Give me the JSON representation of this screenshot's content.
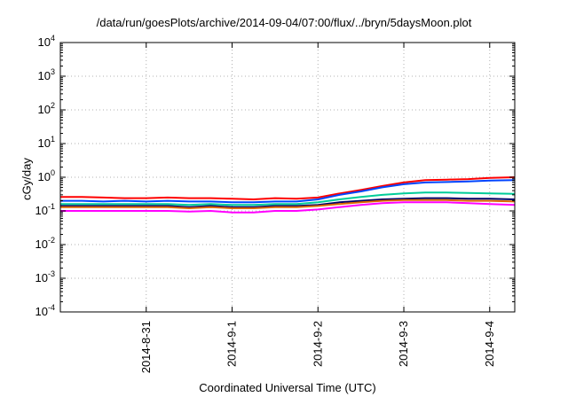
{
  "chart_data": {
    "type": "line",
    "title": "/data/run/goesPlots/archive/2014-09-04/07:00/flux/../bryn/5daysMoon.plot",
    "xlabel": "Coordinated Universal Time (UTC)",
    "ylabel": "cGy/day",
    "yscale": "log",
    "ylim": [
      0.0001,
      10000
    ],
    "xlim": [
      "2014-08-30T00:00",
      "2014-09-04T07:00"
    ],
    "x_ticks": [
      "2014-8-31",
      "2014-9-1",
      "2014-9-2",
      "2014-9-3",
      "2014-9-4"
    ],
    "y_ticks": [
      {
        "value": 0.0001,
        "base": "10",
        "exp": "-4"
      },
      {
        "value": 0.001,
        "base": "10",
        "exp": "-3"
      },
      {
        "value": 0.01,
        "base": "10",
        "exp": "-2"
      },
      {
        "value": 0.1,
        "base": "10",
        "exp": "-1"
      },
      {
        "value": 1,
        "base": "10",
        "exp": "0"
      },
      {
        "value": 10,
        "base": "10",
        "exp": "1"
      },
      {
        "value": 100,
        "base": "10",
        "exp": "2"
      },
      {
        "value": 1000,
        "base": "10",
        "exp": "3"
      },
      {
        "value": 10000,
        "base": "10",
        "exp": "4"
      }
    ],
    "grid": true,
    "x": [
      "2014-08-30T00:00",
      "2014-08-30T06:00",
      "2014-08-30T12:00",
      "2014-08-30T18:00",
      "2014-08-31T00:00",
      "2014-08-31T06:00",
      "2014-08-31T12:00",
      "2014-08-31T18:00",
      "2014-09-01T00:00",
      "2014-09-01T06:00",
      "2014-09-01T12:00",
      "2014-09-01T18:00",
      "2014-09-02T00:00",
      "2014-09-02T06:00",
      "2014-09-02T12:00",
      "2014-09-02T18:00",
      "2014-09-03T00:00",
      "2014-09-03T06:00",
      "2014-09-03T12:00",
      "2014-09-03T18:00",
      "2014-09-04T00:00",
      "2014-09-04T07:00"
    ],
    "series": [
      {
        "color": "#ff0000",
        "values": [
          0.26,
          0.26,
          0.25,
          0.24,
          0.24,
          0.25,
          0.24,
          0.24,
          0.23,
          0.22,
          0.24,
          0.23,
          0.25,
          0.33,
          0.42,
          0.55,
          0.7,
          0.82,
          0.85,
          0.88,
          0.95,
          1.0
        ]
      },
      {
        "color": "#0044ff",
        "values": [
          0.2,
          0.2,
          0.19,
          0.2,
          0.19,
          0.2,
          0.19,
          0.19,
          0.18,
          0.18,
          0.19,
          0.19,
          0.22,
          0.3,
          0.38,
          0.5,
          0.62,
          0.7,
          0.72,
          0.75,
          0.8,
          0.82
        ]
      },
      {
        "color": "#00cc99",
        "values": [
          0.16,
          0.16,
          0.16,
          0.16,
          0.16,
          0.16,
          0.15,
          0.16,
          0.15,
          0.15,
          0.16,
          0.16,
          0.18,
          0.22,
          0.26,
          0.3,
          0.33,
          0.35,
          0.35,
          0.34,
          0.33,
          0.32
        ]
      },
      {
        "color": "#000066",
        "values": [
          0.14,
          0.14,
          0.14,
          0.14,
          0.14,
          0.14,
          0.13,
          0.14,
          0.13,
          0.13,
          0.14,
          0.14,
          0.15,
          0.18,
          0.2,
          0.22,
          0.23,
          0.24,
          0.24,
          0.23,
          0.23,
          0.22
        ]
      },
      {
        "color": "#dd6600",
        "values": [
          0.13,
          0.13,
          0.13,
          0.13,
          0.13,
          0.13,
          0.12,
          0.13,
          0.12,
          0.12,
          0.13,
          0.13,
          0.14,
          0.16,
          0.18,
          0.2,
          0.21,
          0.21,
          0.21,
          0.2,
          0.2,
          0.19
        ]
      },
      {
        "color": "#ff00ff",
        "values": [
          0.1,
          0.1,
          0.1,
          0.1,
          0.1,
          0.1,
          0.095,
          0.1,
          0.09,
          0.09,
          0.1,
          0.1,
          0.11,
          0.13,
          0.15,
          0.17,
          0.18,
          0.18,
          0.18,
          0.17,
          0.16,
          0.15
        ]
      }
    ]
  }
}
